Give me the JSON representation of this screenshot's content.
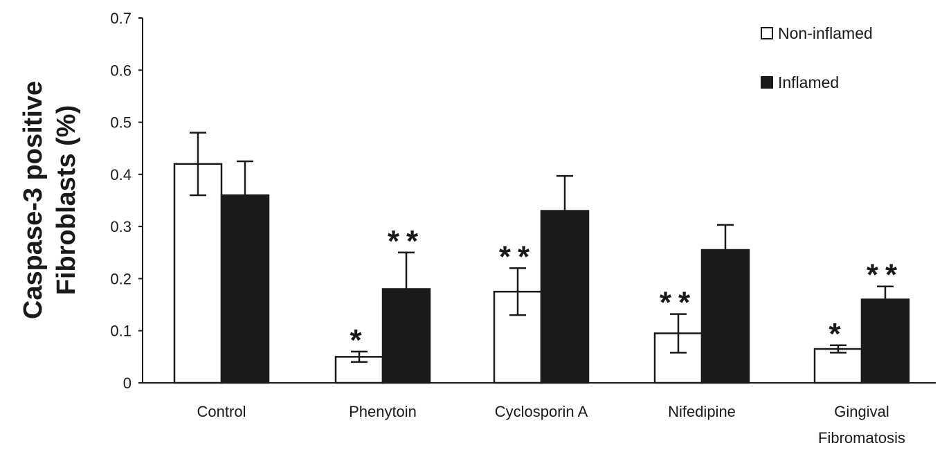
{
  "chart_data": {
    "type": "bar",
    "title": "",
    "xlabel": "",
    "ylabel_lines": [
      "Caspase-3 positive",
      "Fibroblasts (%)"
    ],
    "ylim": [
      0,
      0.7
    ],
    "yticks": [
      "0",
      "0.1",
      "0.2",
      "0.3",
      "0.4",
      "0.5",
      "0.6",
      "0.7"
    ],
    "categories": [
      [
        "Control"
      ],
      [
        "Phenytoin"
      ],
      [
        "Cyclosporin A"
      ],
      [
        "Nifedipine"
      ],
      [
        "Gingival",
        "Fibromatosis"
      ]
    ],
    "series": [
      {
        "name": "Non-inflamed",
        "color": "#ffffff",
        "values": [
          0.42,
          0.05,
          0.175,
          0.095,
          0.065
        ],
        "errors": [
          0.06,
          0.01,
          0.045,
          0.037,
          0.007
        ],
        "significance": [
          "",
          "*",
          "**",
          "**",
          "*"
        ]
      },
      {
        "name": "Inflamed",
        "color": "#1a1a1a",
        "values": [
          0.36,
          0.18,
          0.33,
          0.255,
          0.16
        ],
        "errors": [
          0.065,
          0.07,
          0.067,
          0.048,
          0.025
        ],
        "significance": [
          "",
          "**",
          "",
          "",
          "**"
        ]
      }
    ],
    "legend_position": "top-right",
    "grid": false
  }
}
